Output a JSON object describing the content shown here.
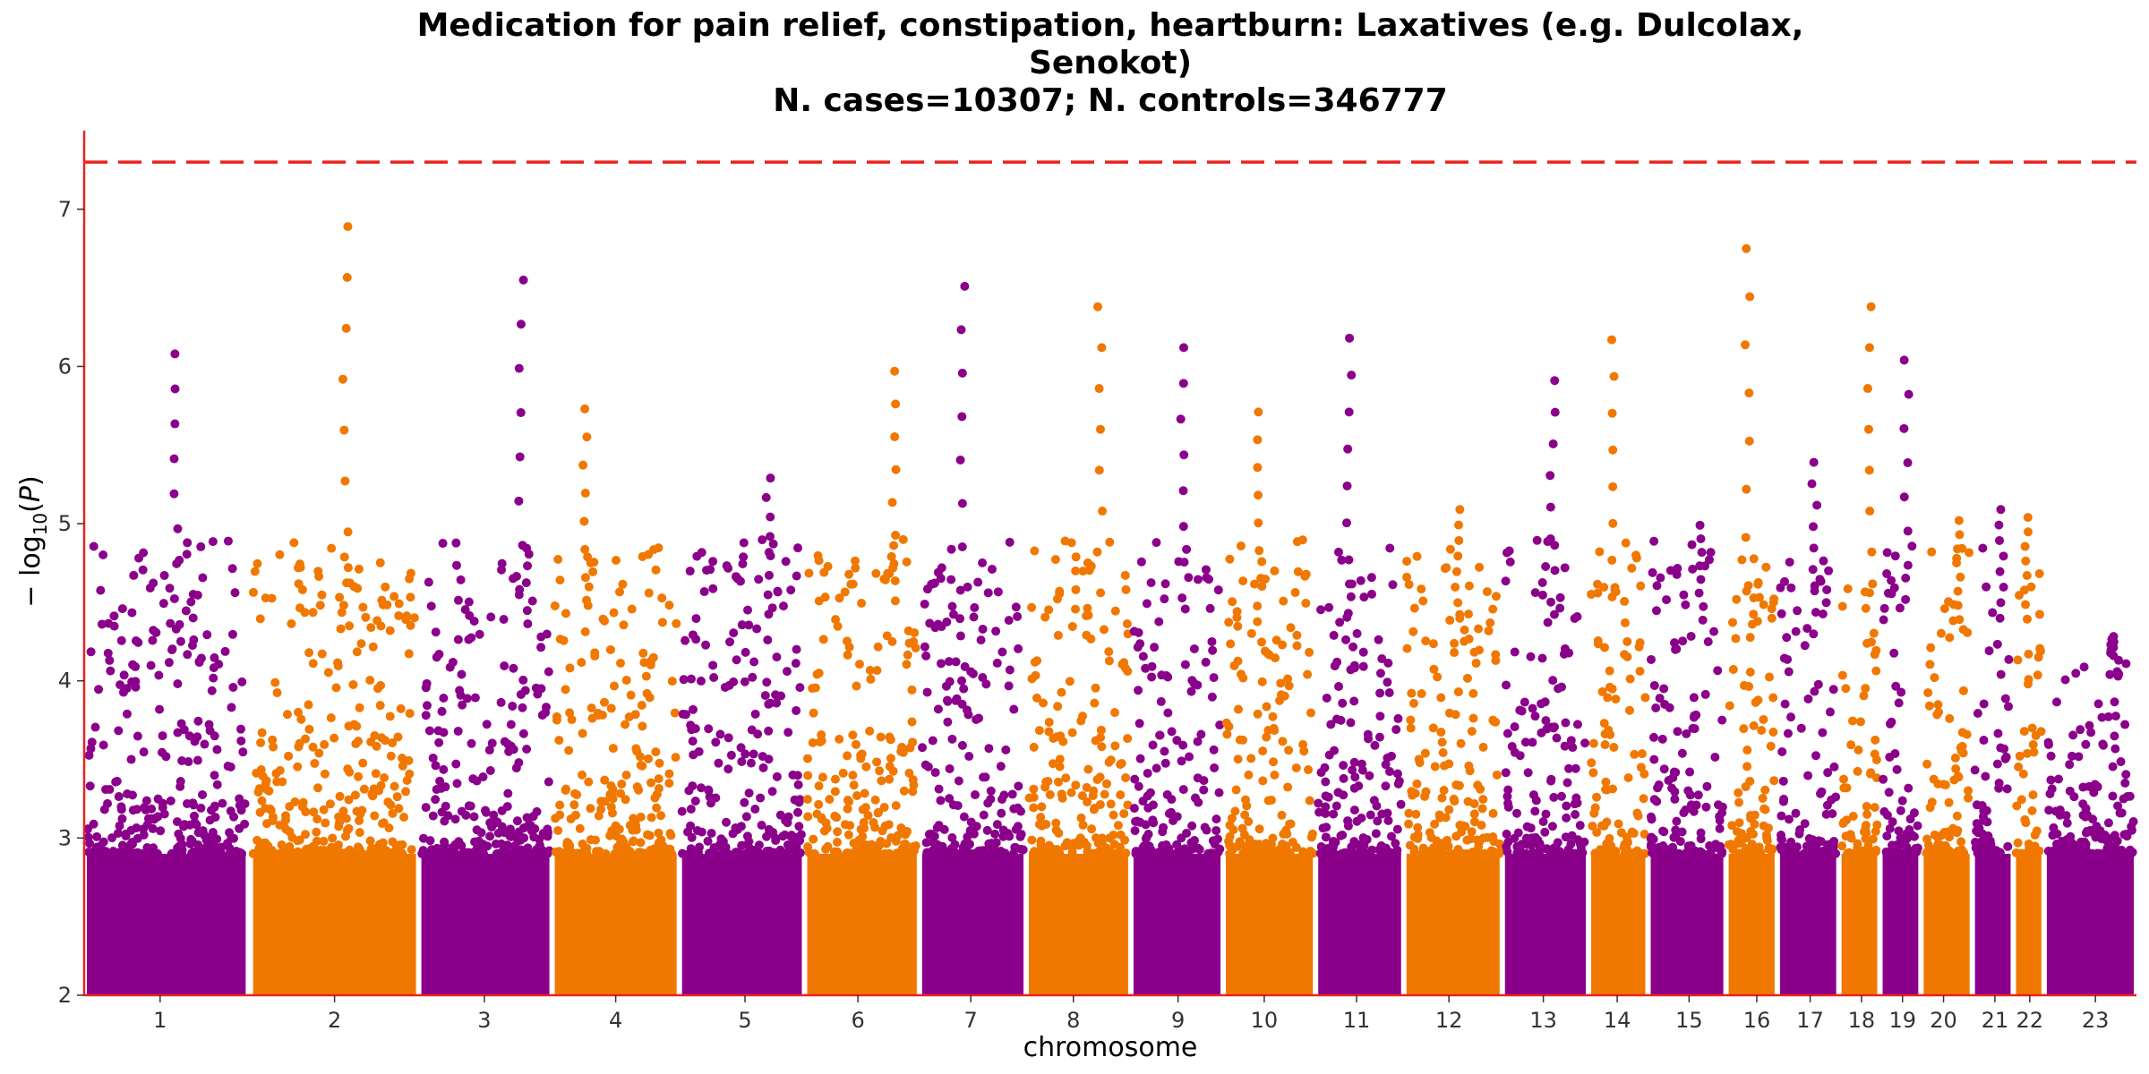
{
  "chart_data": {
    "type": "scatter",
    "subtype": "manhattan",
    "title_lines": [
      "Medication for pain relief, constipation, heartburn: Laxatives (e.g. Dulcolax,",
      "Senokot)",
      "N. cases=10307; N. controls=346777"
    ],
    "xlabel": "chromosome",
    "ylabel": "−log10(P)",
    "ylim": [
      2,
      7.5
    ],
    "yticks": [
      2,
      3,
      4,
      5,
      6,
      7
    ],
    "significance_threshold": 7.3,
    "threshold_color": "#e8231f",
    "series_colors": [
      "#8b008b",
      "#f07800"
    ],
    "grid": false,
    "chromosomes": [
      {
        "label": "1",
        "center": 0.037,
        "color": "#8b008b",
        "start": 0.0,
        "end": 0.08
      },
      {
        "label": "2",
        "center": 0.122,
        "color": "#f07800",
        "start": 0.081,
        "end": 0.163
      },
      {
        "label": "3",
        "center": 0.195,
        "color": "#8b008b",
        "start": 0.163,
        "end": 0.228
      },
      {
        "label": "4",
        "center": 0.259,
        "color": "#f07800",
        "start": 0.228,
        "end": 0.29
      },
      {
        "label": "5",
        "center": 0.322,
        "color": "#8b008b",
        "start": 0.29,
        "end": 0.351
      },
      {
        "label": "6",
        "center": 0.377,
        "color": "#f07800",
        "start": 0.351,
        "end": 0.407
      },
      {
        "label": "7",
        "center": 0.432,
        "color": "#8b008b",
        "start": 0.407,
        "end": 0.459
      },
      {
        "label": "8",
        "center": 0.482,
        "color": "#f07800",
        "start": 0.459,
        "end": 0.51
      },
      {
        "label": "9",
        "center": 0.533,
        "color": "#8b008b",
        "start": 0.51,
        "end": 0.555
      },
      {
        "label": "10",
        "center": 0.575,
        "color": "#f07800",
        "start": 0.555,
        "end": 0.6
      },
      {
        "label": "11",
        "center": 0.62,
        "color": "#8b008b",
        "start": 0.6,
        "end": 0.643
      },
      {
        "label": "12",
        "center": 0.665,
        "color": "#f07800",
        "start": 0.643,
        "end": 0.691
      },
      {
        "label": "13",
        "center": 0.711,
        "color": "#8b008b",
        "start": 0.691,
        "end": 0.733
      },
      {
        "label": "14",
        "center": 0.747,
        "color": "#f07800",
        "start": 0.733,
        "end": 0.762
      },
      {
        "label": "15",
        "center": 0.782,
        "color": "#8b008b",
        "start": 0.762,
        "end": 0.8
      },
      {
        "label": "16",
        "center": 0.815,
        "color": "#f07800",
        "start": 0.8,
        "end": 0.825
      },
      {
        "label": "17",
        "center": 0.841,
        "color": "#8b008b",
        "start": 0.825,
        "end": 0.855
      },
      {
        "label": "18",
        "center": 0.866,
        "color": "#f07800",
        "start": 0.855,
        "end": 0.875
      },
      {
        "label": "19",
        "center": 0.886,
        "color": "#8b008b",
        "start": 0.875,
        "end": 0.895
      },
      {
        "label": "20",
        "center": 0.906,
        "color": "#f07800",
        "start": 0.895,
        "end": 0.92
      },
      {
        "label": "21",
        "center": 0.931,
        "color": "#8b008b",
        "start": 0.92,
        "end": 0.94
      },
      {
        "label": "22",
        "center": 0.948,
        "color": "#f07800",
        "start": 0.94,
        "end": 0.955
      },
      {
        "label": "23",
        "center": 0.98,
        "color": "#8b008b",
        "start": 0.955,
        "end": 1.0
      }
    ],
    "top_hits": [
      {
        "chromosome": "1",
        "y": 6.08
      },
      {
        "chromosome": "2",
        "y": 6.89
      },
      {
        "chromosome": "3",
        "y": 6.55
      },
      {
        "chromosome": "4",
        "y": 5.73
      },
      {
        "chromosome": "5",
        "y": 5.29
      },
      {
        "chromosome": "6",
        "y": 5.97
      },
      {
        "chromosome": "7",
        "y": 6.51
      },
      {
        "chromosome": "8",
        "y": 6.38
      },
      {
        "chromosome": "9",
        "y": 6.12
      },
      {
        "chromosome": "10",
        "y": 5.71
      },
      {
        "chromosome": "11",
        "y": 6.18
      },
      {
        "chromosome": "12",
        "y": 5.09
      },
      {
        "chromosome": "13",
        "y": 5.91
      },
      {
        "chromosome": "14",
        "y": 6.17
      },
      {
        "chromosome": "15",
        "y": 4.99
      },
      {
        "chromosome": "16",
        "y": 6.75
      },
      {
        "chromosome": "17",
        "y": 5.39
      },
      {
        "chromosome": "18",
        "y": 6.38
      },
      {
        "chromosome": "19",
        "y": 6.04
      },
      {
        "chromosome": "20",
        "y": 5.02
      },
      {
        "chromosome": "21",
        "y": 5.09
      },
      {
        "chromosome": "22",
        "y": 5.04
      },
      {
        "chromosome": "23",
        "y": 4.16
      }
    ]
  }
}
